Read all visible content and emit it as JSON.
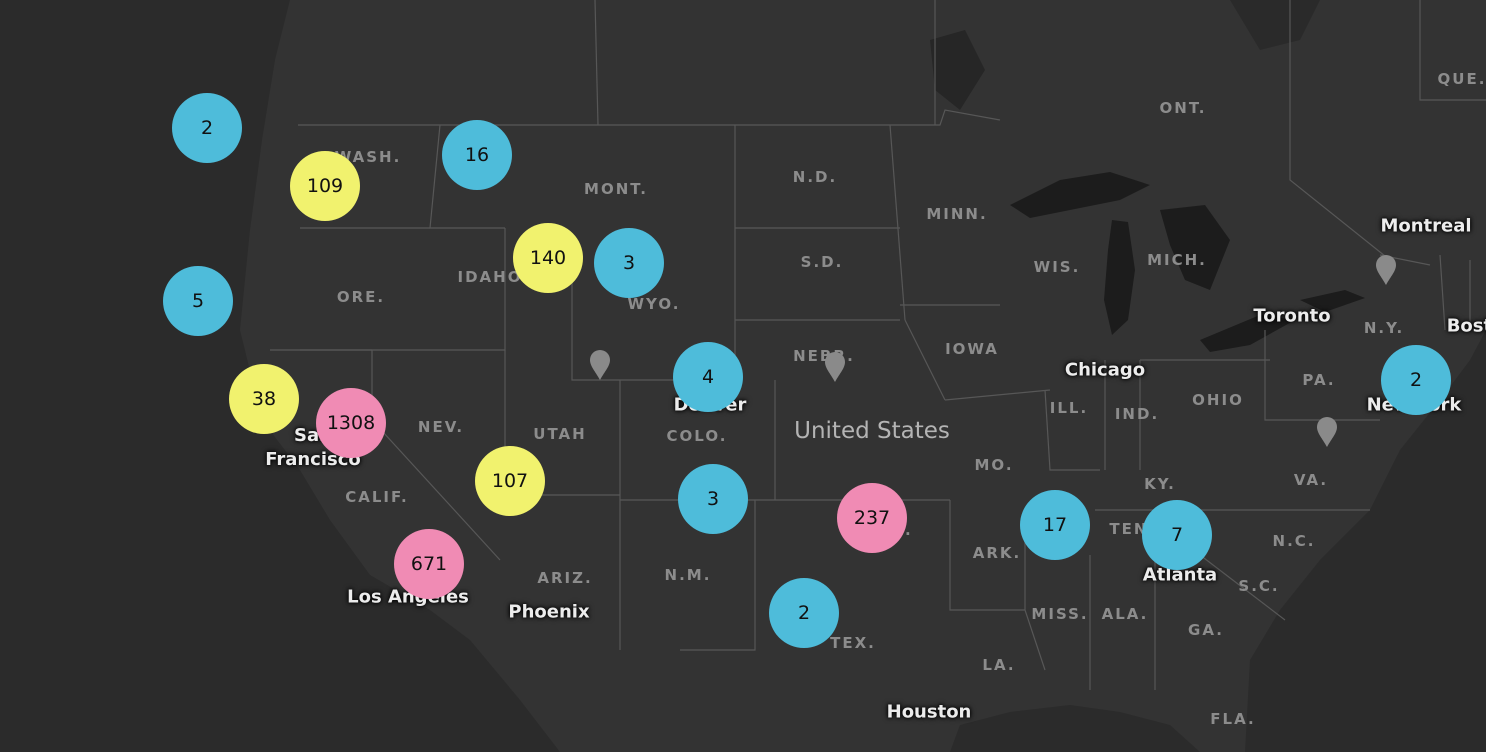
{
  "map": {
    "country_label": "United States",
    "colors": {
      "ocean": "#2b2b2b",
      "land": "#333333",
      "water": "#1c1c1c",
      "border": "#575757",
      "cluster_small": "#4ebcda",
      "cluster_medium": "#f1f26e",
      "cluster_large": "#f08bb4",
      "pin": "#8a8a8a"
    },
    "state_labels": [
      {
        "id": "wash",
        "text": "WASH."
      },
      {
        "id": "mont",
        "text": "MONT."
      },
      {
        "id": "nd",
        "text": "N.D."
      },
      {
        "id": "minn",
        "text": "MINN."
      },
      {
        "id": "ont",
        "text": "ONT."
      },
      {
        "id": "que",
        "text": "QUE."
      },
      {
        "id": "idaho",
        "text": "IDAHO"
      },
      {
        "id": "wyo",
        "text": "WYO."
      },
      {
        "id": "sd",
        "text": "S.D."
      },
      {
        "id": "wis",
        "text": "WIS."
      },
      {
        "id": "mich",
        "text": "MICH."
      },
      {
        "id": "ore",
        "text": "ORE."
      },
      {
        "id": "nebr",
        "text": "NEBR."
      },
      {
        "id": "iowa",
        "text": "IOWA"
      },
      {
        "id": "ny",
        "text": "N.Y."
      },
      {
        "id": "pa",
        "text": "PA."
      },
      {
        "id": "ohio",
        "text": "OHIO"
      },
      {
        "id": "ill",
        "text": "ILL."
      },
      {
        "id": "ind",
        "text": "IND."
      },
      {
        "id": "nev",
        "text": "NEV."
      },
      {
        "id": "utah",
        "text": "UTAH"
      },
      {
        "id": "colo",
        "text": "COLO."
      },
      {
        "id": "mo",
        "text": "MO."
      },
      {
        "id": "ky",
        "text": "KY."
      },
      {
        "id": "va",
        "text": "VA."
      },
      {
        "id": "calif",
        "text": "CALIF."
      },
      {
        "id": "ark",
        "text": "ARK."
      },
      {
        "id": "tenn",
        "text": "TENN."
      },
      {
        "id": "nc",
        "text": "N.C."
      },
      {
        "id": "ariz",
        "text": "ARIZ."
      },
      {
        "id": "nm",
        "text": "N.M."
      },
      {
        "id": "okla",
        "text": "OKLA."
      },
      {
        "id": "sc",
        "text": "S.C."
      },
      {
        "id": "miss",
        "text": "MISS."
      },
      {
        "id": "ala",
        "text": "ALA."
      },
      {
        "id": "ga",
        "text": "GA."
      },
      {
        "id": "tex",
        "text": "TEX."
      },
      {
        "id": "la",
        "text": "LA."
      },
      {
        "id": "fla",
        "text": "FLA."
      }
    ],
    "city_labels": [
      {
        "id": "montreal",
        "text": "Montreal"
      },
      {
        "id": "toronto",
        "text": "Toronto"
      },
      {
        "id": "boston",
        "text": "Boston"
      },
      {
        "id": "chicago",
        "text": "Chicago"
      },
      {
        "id": "new-york",
        "text": "New York"
      },
      {
        "id": "denver",
        "text": "Denver"
      },
      {
        "id": "san-francisco",
        "text": "San Francisco"
      },
      {
        "id": "los-angeles",
        "text": "Los Angeles"
      },
      {
        "id": "phoenix",
        "text": "Phoenix"
      },
      {
        "id": "atlanta",
        "text": "Atlanta"
      },
      {
        "id": "houston",
        "text": "Houston"
      }
    ],
    "clusters": [
      {
        "id": "c1",
        "count": "2",
        "tier": "small"
      },
      {
        "id": "c2",
        "count": "16",
        "tier": "small"
      },
      {
        "id": "c3",
        "count": "109",
        "tier": "medium"
      },
      {
        "id": "c4",
        "count": "140",
        "tier": "medium"
      },
      {
        "id": "c5",
        "count": "3",
        "tier": "small"
      },
      {
        "id": "c6",
        "count": "5",
        "tier": "small"
      },
      {
        "id": "c7",
        "count": "4",
        "tier": "small"
      },
      {
        "id": "c8",
        "count": "38",
        "tier": "medium"
      },
      {
        "id": "c9",
        "count": "1308",
        "tier": "large"
      },
      {
        "id": "c10",
        "count": "107",
        "tier": "medium"
      },
      {
        "id": "c11",
        "count": "3",
        "tier": "small"
      },
      {
        "id": "c12",
        "count": "237",
        "tier": "large"
      },
      {
        "id": "c13",
        "count": "17",
        "tier": "small"
      },
      {
        "id": "c14",
        "count": "7",
        "tier": "small"
      },
      {
        "id": "c15",
        "count": "2",
        "tier": "small"
      },
      {
        "id": "c16",
        "count": "671",
        "tier": "large"
      },
      {
        "id": "c17",
        "count": "2",
        "tier": "small"
      }
    ],
    "pins": [
      {
        "id": "pin-1"
      },
      {
        "id": "pin-2"
      },
      {
        "id": "pin-3"
      },
      {
        "id": "pin-4"
      }
    ]
  }
}
